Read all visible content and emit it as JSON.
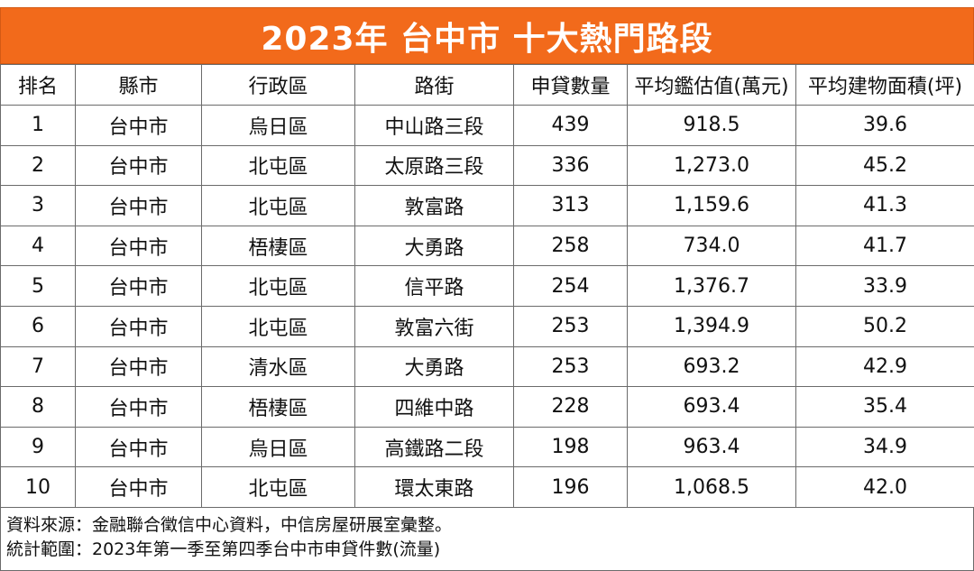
{
  "title": "2023年 台中市 十大熱門路段",
  "colors": {
    "title_bg": "#f26a1b",
    "title_text": "#ffffff",
    "border": "#6b6b6b"
  },
  "table": {
    "headers": [
      "排名",
      "縣市",
      "行政區",
      "路街",
      "申貸數量",
      "平均鑑估值(萬元)",
      "平均建物面積(坪)"
    ],
    "rows": [
      [
        "1",
        "台中市",
        "烏日區",
        "中山路三段",
        "439",
        "918.5",
        "39.6"
      ],
      [
        "2",
        "台中市",
        "北屯區",
        "太原路三段",
        "336",
        "1,273.0",
        "45.2"
      ],
      [
        "3",
        "台中市",
        "北屯區",
        "敦富路",
        "313",
        "1,159.6",
        "41.3"
      ],
      [
        "4",
        "台中市",
        "梧棲區",
        "大勇路",
        "258",
        "734.0",
        "41.7"
      ],
      [
        "5",
        "台中市",
        "北屯區",
        "信平路",
        "254",
        "1,376.7",
        "33.9"
      ],
      [
        "6",
        "台中市",
        "北屯區",
        "敦富六街",
        "253",
        "1,394.9",
        "50.2"
      ],
      [
        "7",
        "台中市",
        "清水區",
        "大勇路",
        "253",
        "693.2",
        "42.9"
      ],
      [
        "8",
        "台中市",
        "梧棲區",
        "四維中路",
        "228",
        "693.4",
        "35.4"
      ],
      [
        "9",
        "台中市",
        "烏日區",
        "高鐵路二段",
        "198",
        "963.4",
        "34.9"
      ],
      [
        "10",
        "台中市",
        "北屯區",
        "環太東路",
        "196",
        "1,068.5",
        "42.0"
      ]
    ]
  },
  "footnotes": {
    "source": "資料來源：金融聯合徵信中心資料，中信房屋研展室彙整。",
    "scope": "統計範圍：2023年第一季至第四季台中市申貸件數(流量)"
  }
}
